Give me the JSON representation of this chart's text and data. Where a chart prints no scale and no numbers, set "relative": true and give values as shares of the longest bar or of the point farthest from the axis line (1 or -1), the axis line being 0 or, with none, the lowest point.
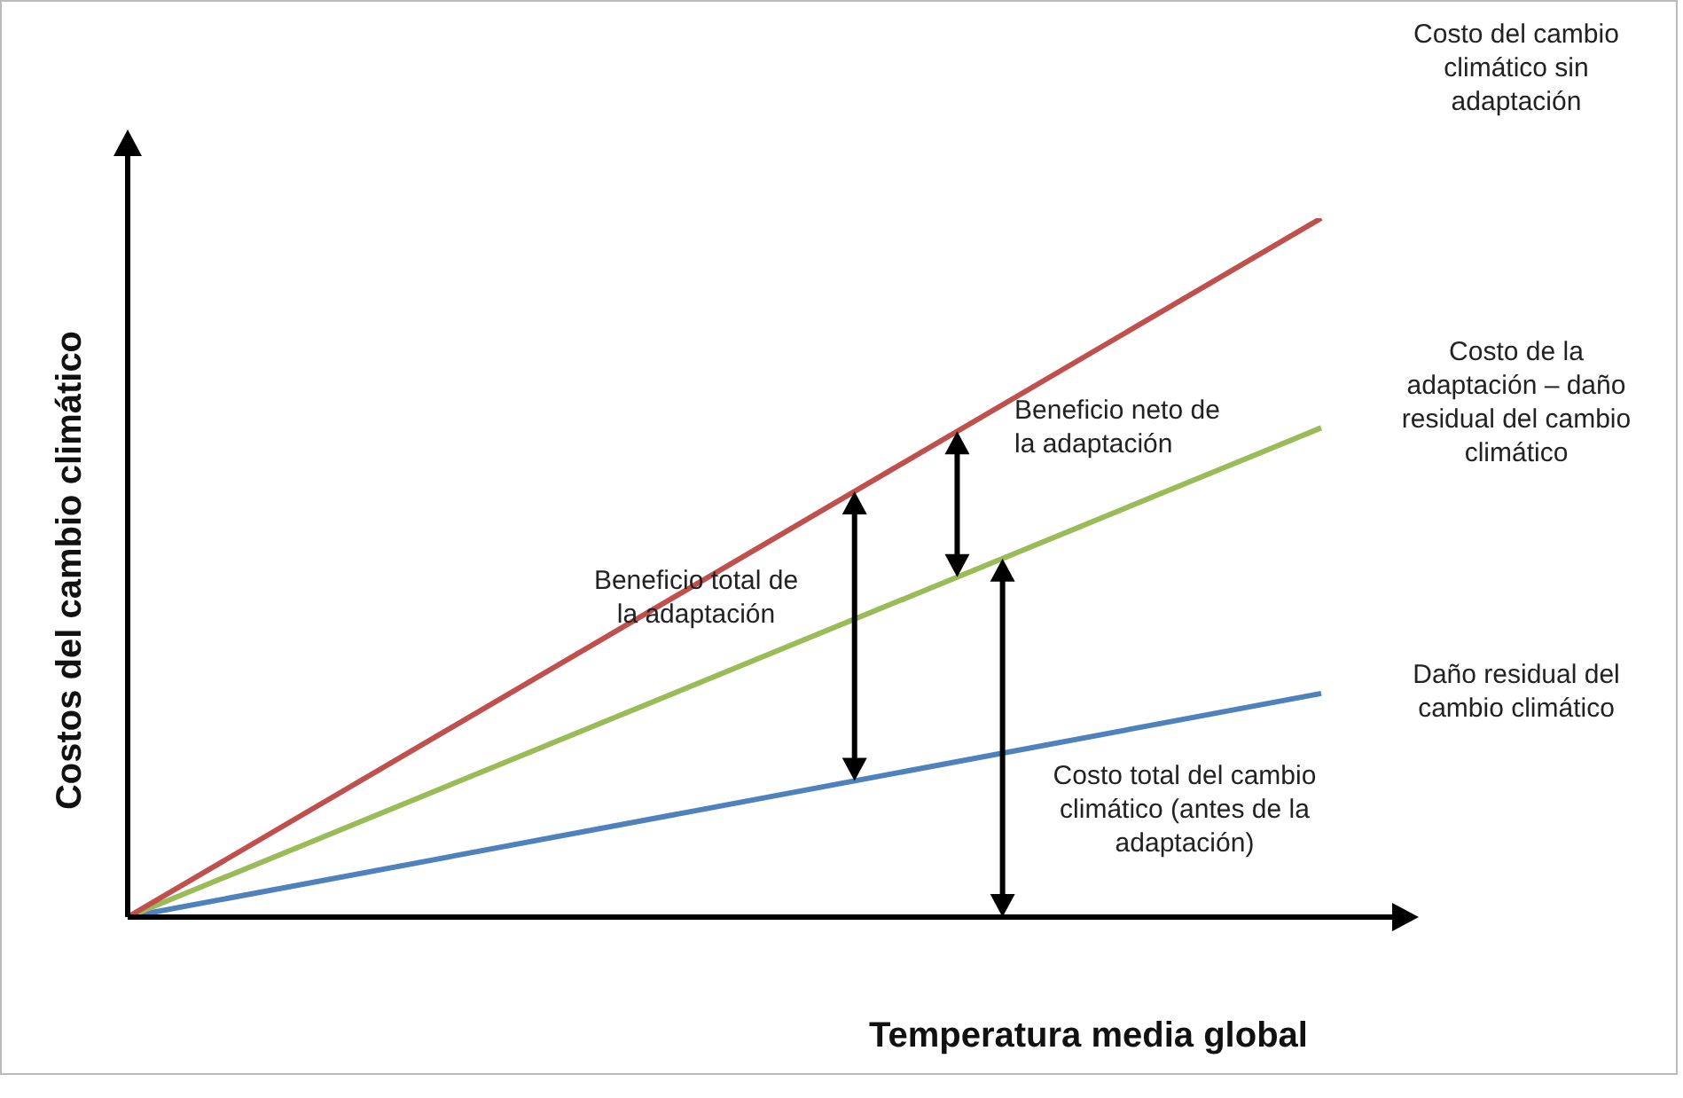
{
  "chart_data": {
    "type": "line",
    "relative": true,
    "xlabel": "Temperatura media global",
    "ylabel": "Costos del cambio climático",
    "categories": [
      null,
      null
    ],
    "legend": false,
    "marker": "none",
    "series": [
      {
        "name": "Costo del cambio climático sin adaptación",
        "color": "#c0504d",
        "values": [
          0,
          1
        ]
      },
      {
        "name": "Costo de la adaptación – daño residual del cambio climático",
        "color": "#9bbb59",
        "values": [
          0,
          0.7
        ]
      },
      {
        "name": "Daño residual del cambio climático",
        "color": "#4f81bd",
        "values": [
          0,
          0.32
        ]
      }
    ],
    "annotations": [
      "Beneficio neto de la adaptación",
      "Beneficio total de la adaptación",
      "Costo total del cambio climático (antes de la adaptación)"
    ]
  }
}
